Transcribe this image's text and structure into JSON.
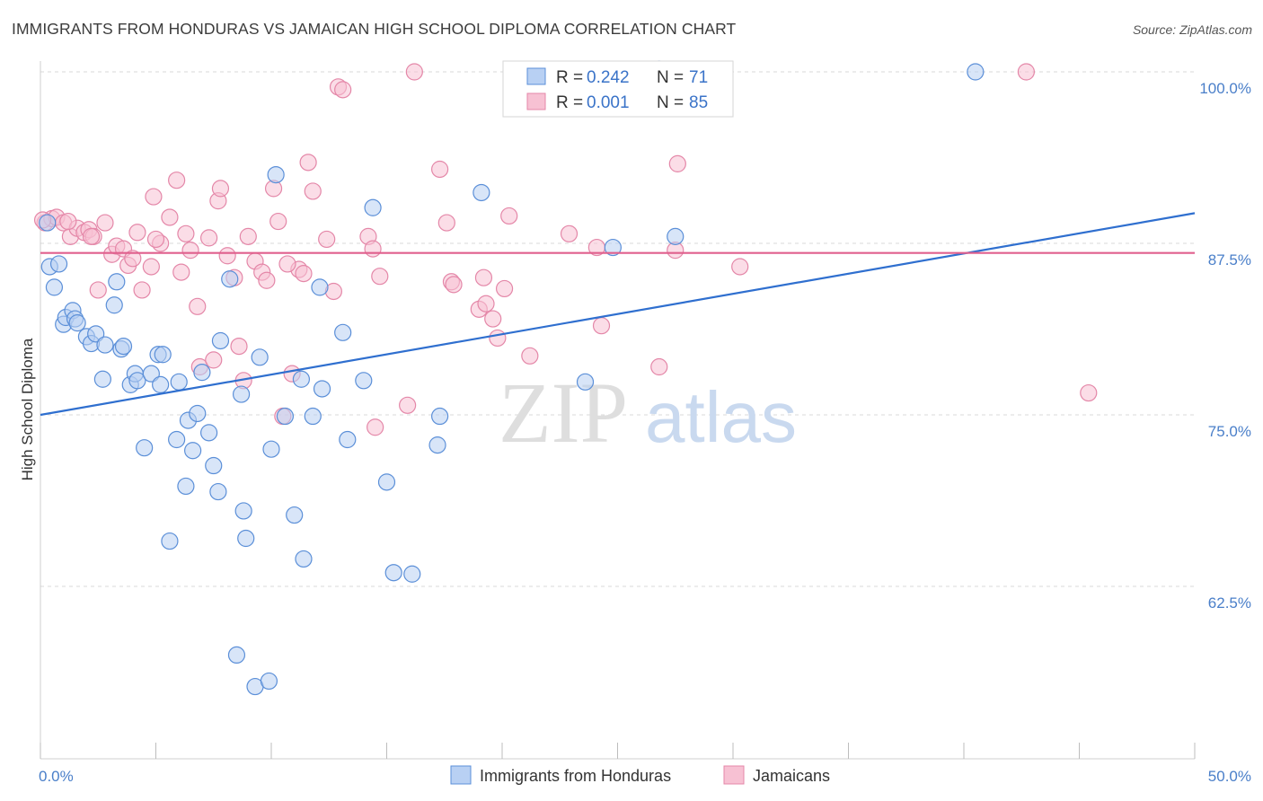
{
  "title": "IMMIGRANTS FROM HONDURAS VS JAMAICAN HIGH SCHOOL DIPLOMA CORRELATION CHART",
  "source": "Source: ZipAtlas.com",
  "watermark": {
    "zip": "ZIP",
    "atlas": "atlas"
  },
  "legend": {
    "r_label": "R =",
    "n_label": "N =",
    "rows": [
      {
        "r": "0.242",
        "n": "71"
      },
      {
        "r": "0.001",
        "n": "85"
      }
    ]
  },
  "colors": {
    "blue_fill": "#b8d0f3",
    "blue_stroke": "#5b8fd8",
    "blue_line": "#2f6fcf",
    "pink_fill": "#f7c1d3",
    "pink_stroke": "#e487a8",
    "pink_line": "#e0608d",
    "axis_text": "#4a7fc9",
    "grid": "#d8d8d8"
  },
  "chart_data": {
    "type": "scatter",
    "title": "IMMIGRANTS FROM HONDURAS VS JAMAICAN HIGH SCHOOL DIPLOMA CORRELATION CHART",
    "xlabel": "",
    "ylabel": "High School Diploma",
    "xlim": [
      0,
      50
    ],
    "ylim": [
      51,
      102
    ],
    "x_ticks": [
      "0.0%",
      "50.0%"
    ],
    "y_ticks": [
      {
        "value": 62.5,
        "label": "62.5%"
      },
      {
        "value": 75.0,
        "label": "75.0%"
      },
      {
        "value": 87.5,
        "label": "87.5%"
      },
      {
        "value": 100.0,
        "label": "100.0%"
      }
    ],
    "grid": "horizontal dashed",
    "legend_placement": "top-center",
    "series": [
      {
        "name": "Immigrants from Honduras",
        "trend": [
          [
            0,
            75.0
          ],
          [
            50,
            89.7
          ]
        ],
        "points": [
          [
            0.3,
            89.0
          ],
          [
            0.4,
            85.8
          ],
          [
            0.6,
            84.3
          ],
          [
            0.8,
            86.0
          ],
          [
            1.0,
            81.6
          ],
          [
            1.1,
            82.1
          ],
          [
            1.4,
            82.6
          ],
          [
            1.5,
            82.0
          ],
          [
            1.6,
            81.7
          ],
          [
            2.0,
            80.7
          ],
          [
            2.2,
            80.2
          ],
          [
            2.4,
            80.9
          ],
          [
            2.7,
            77.6
          ],
          [
            2.8,
            80.1
          ],
          [
            3.2,
            83.0
          ],
          [
            3.3,
            84.7
          ],
          [
            3.5,
            79.8
          ],
          [
            3.6,
            80.0
          ],
          [
            3.9,
            77.2
          ],
          [
            4.1,
            78.0
          ],
          [
            4.2,
            77.5
          ],
          [
            4.5,
            72.6
          ],
          [
            4.8,
            78.0
          ],
          [
            5.1,
            79.4
          ],
          [
            5.2,
            77.2
          ],
          [
            5.3,
            79.4
          ],
          [
            5.6,
            65.8
          ],
          [
            5.9,
            73.2
          ],
          [
            6.0,
            77.4
          ],
          [
            6.3,
            69.8
          ],
          [
            6.4,
            74.6
          ],
          [
            6.6,
            72.4
          ],
          [
            6.8,
            75.1
          ],
          [
            7.0,
            78.1
          ],
          [
            7.3,
            73.7
          ],
          [
            7.5,
            71.3
          ],
          [
            7.7,
            69.4
          ],
          [
            7.8,
            80.4
          ],
          [
            8.2,
            84.9
          ],
          [
            8.5,
            57.5
          ],
          [
            8.7,
            76.5
          ],
          [
            8.8,
            68.0
          ],
          [
            8.9,
            66.0
          ],
          [
            9.3,
            55.2
          ],
          [
            9.5,
            79.2
          ],
          [
            9.9,
            55.6
          ],
          [
            10.0,
            72.5
          ],
          [
            10.2,
            92.5
          ],
          [
            10.6,
            74.9
          ],
          [
            11.0,
            67.7
          ],
          [
            11.3,
            77.6
          ],
          [
            11.4,
            64.5
          ],
          [
            11.8,
            74.9
          ],
          [
            12.1,
            84.3
          ],
          [
            12.2,
            76.9
          ],
          [
            13.1,
            81.0
          ],
          [
            13.3,
            73.2
          ],
          [
            14.0,
            77.5
          ],
          [
            14.4,
            90.1
          ],
          [
            15.0,
            70.1
          ],
          [
            15.3,
            63.5
          ],
          [
            16.1,
            63.4
          ],
          [
            17.2,
            72.8
          ],
          [
            17.3,
            74.9
          ],
          [
            19.1,
            91.2
          ],
          [
            23.6,
            77.4
          ],
          [
            24.8,
            87.2
          ],
          [
            26.8,
            100.2
          ],
          [
            27.5,
            88.0
          ],
          [
            28.1,
            100.1
          ],
          [
            40.5,
            100.0
          ]
        ]
      },
      {
        "name": "Jamaicans",
        "trend": [
          [
            0,
            86.8
          ],
          [
            50,
            86.8
          ]
        ],
        "points": [
          [
            0.2,
            89.0
          ],
          [
            0.5,
            89.3
          ],
          [
            0.7,
            89.4
          ],
          [
            1.0,
            89.0
          ],
          [
            1.3,
            88.0
          ],
          [
            1.6,
            88.6
          ],
          [
            1.9,
            88.3
          ],
          [
            2.1,
            88.5
          ],
          [
            2.3,
            88.0
          ],
          [
            2.5,
            84.1
          ],
          [
            2.8,
            89.0
          ],
          [
            3.1,
            86.7
          ],
          [
            3.3,
            87.3
          ],
          [
            3.6,
            87.1
          ],
          [
            3.8,
            85.9
          ],
          [
            4.0,
            86.4
          ],
          [
            4.2,
            88.3
          ],
          [
            4.4,
            84.1
          ],
          [
            4.8,
            85.8
          ],
          [
            4.9,
            90.9
          ],
          [
            5.2,
            87.5
          ],
          [
            5.6,
            89.4
          ],
          [
            5.9,
            92.1
          ],
          [
            6.1,
            85.4
          ],
          [
            6.3,
            88.2
          ],
          [
            6.5,
            87.0
          ],
          [
            6.8,
            82.9
          ],
          [
            6.9,
            78.5
          ],
          [
            7.3,
            87.9
          ],
          [
            7.5,
            79.0
          ],
          [
            7.7,
            90.6
          ],
          [
            7.8,
            91.5
          ],
          [
            8.1,
            86.6
          ],
          [
            8.4,
            85.0
          ],
          [
            8.6,
            80.0
          ],
          [
            8.8,
            77.5
          ],
          [
            9.0,
            88.0
          ],
          [
            9.3,
            86.2
          ],
          [
            9.6,
            85.4
          ],
          [
            9.8,
            84.8
          ],
          [
            10.1,
            91.5
          ],
          [
            10.3,
            89.1
          ],
          [
            10.5,
            74.9
          ],
          [
            10.9,
            78.0
          ],
          [
            11.2,
            85.6
          ],
          [
            11.4,
            85.3
          ],
          [
            11.6,
            93.4
          ],
          [
            11.8,
            91.3
          ],
          [
            12.4,
            87.8
          ],
          [
            12.7,
            84.0
          ],
          [
            12.9,
            98.9
          ],
          [
            13.1,
            98.7
          ],
          [
            14.2,
            88.0
          ],
          [
            14.4,
            87.1
          ],
          [
            14.5,
            74.1
          ],
          [
            14.7,
            85.1
          ],
          [
            15.9,
            75.7
          ],
          [
            16.2,
            100.0
          ],
          [
            17.3,
            92.9
          ],
          [
            17.6,
            89.0
          ],
          [
            17.8,
            84.7
          ],
          [
            17.9,
            84.5
          ],
          [
            19.0,
            82.7
          ],
          [
            19.2,
            85.0
          ],
          [
            19.3,
            83.1
          ],
          [
            19.6,
            82.0
          ],
          [
            19.8,
            80.6
          ],
          [
            20.1,
            84.2
          ],
          [
            20.3,
            89.5
          ],
          [
            21.2,
            79.3
          ],
          [
            22.9,
            88.2
          ],
          [
            24.1,
            87.2
          ],
          [
            24.3,
            81.5
          ],
          [
            26.4,
            100.0
          ],
          [
            26.8,
            78.5
          ],
          [
            27.5,
            87.0
          ],
          [
            27.6,
            93.3
          ],
          [
            30.3,
            85.8
          ],
          [
            42.7,
            100.0
          ],
          [
            45.4,
            76.6
          ],
          [
            0.1,
            89.2
          ],
          [
            1.2,
            89.1
          ],
          [
            2.2,
            88.0
          ],
          [
            5.0,
            87.8
          ],
          [
            10.7,
            86.0
          ]
        ]
      }
    ]
  }
}
